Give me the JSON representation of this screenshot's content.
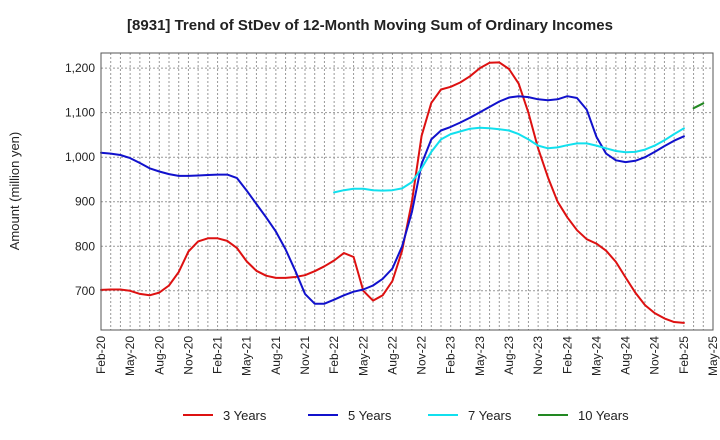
{
  "chart_data": {
    "type": "line",
    "title": "[8931]  Trend of StDev of 12-Month Moving Sum of Ordinary Incomes",
    "xlabel": "",
    "ylabel": "Amount (million yen)",
    "ylim": [
      612,
      1234
    ],
    "yticks": [
      700,
      800,
      900,
      1000,
      1100,
      1200
    ],
    "ytick_labels": [
      "700",
      "800",
      "900",
      "1,000",
      "1,100",
      "1,200"
    ],
    "x_range": [
      0,
      63
    ],
    "xticks": [
      0,
      3,
      6,
      9,
      12,
      15,
      18,
      21,
      24,
      27,
      30,
      33,
      36,
      39,
      42,
      45,
      48,
      51,
      54,
      57,
      60,
      63
    ],
    "xtick_labels": [
      "Feb-20",
      "May-20",
      "Aug-20",
      "Nov-20",
      "Feb-21",
      "May-21",
      "Aug-21",
      "Nov-21",
      "Feb-22",
      "May-22",
      "Aug-22",
      "Nov-22",
      "Feb-23",
      "May-23",
      "Aug-23",
      "Nov-23",
      "Feb-24",
      "May-24",
      "Aug-24",
      "Nov-24",
      "Feb-25",
      "May-25"
    ],
    "grid": true,
    "legend_position": "bottom",
    "series": [
      {
        "name": "3 Years",
        "color": "#dd1111",
        "start": 0,
        "values": [
          702,
          703,
          703,
          700,
          693,
          690,
          696,
          712,
          742,
          788,
          811,
          818,
          818,
          812,
          796,
          766,
          745,
          734,
          729,
          729,
          731,
          735,
          744,
          755,
          768,
          785,
          776,
          700,
          678,
          690,
          722,
          790,
          900,
          1048,
          1122,
          1152,
          1158,
          1168,
          1182,
          1200,
          1212,
          1213,
          1198,
          1165,
          1100,
          1020,
          955,
          900,
          865,
          836,
          816,
          806,
          790,
          765,
          730,
          696,
          668,
          650,
          638,
          630,
          628
        ]
      },
      {
        "name": "5 Years",
        "color": "#1111cc",
        "start": 0,
        "values": [
          1010,
          1008,
          1005,
          998,
          987,
          975,
          968,
          962,
          958,
          958,
          959,
          960,
          961,
          961,
          953,
          925,
          895,
          865,
          833,
          793,
          745,
          693,
          671,
          671,
          680,
          690,
          698,
          703,
          712,
          727,
          750,
          800,
          877,
          985,
          1040,
          1060,
          1068,
          1078,
          1089,
          1101,
          1113,
          1125,
          1134,
          1137,
          1135,
          1130,
          1128,
          1130,
          1137,
          1133,
          1107,
          1046,
          1008,
          993,
          989,
          992,
          1000,
          1012,
          1025,
          1037,
          1047
        ]
      },
      {
        "name": "7 Years",
        "color": "#11e0ee",
        "start": 24,
        "values": [
          921,
          926,
          929,
          929,
          926,
          925,
          926,
          930,
          944,
          975,
          1012,
          1040,
          1052,
          1058,
          1064,
          1066,
          1065,
          1063,
          1060,
          1052,
          1040,
          1026,
          1020,
          1022,
          1027,
          1031,
          1031,
          1026,
          1020,
          1014,
          1011,
          1012,
          1017,
          1026,
          1038,
          1052,
          1065
        ]
      },
      {
        "name": "10 Years",
        "color": "#228822",
        "start": 61,
        "values": [
          1110,
          1121
        ]
      }
    ]
  }
}
